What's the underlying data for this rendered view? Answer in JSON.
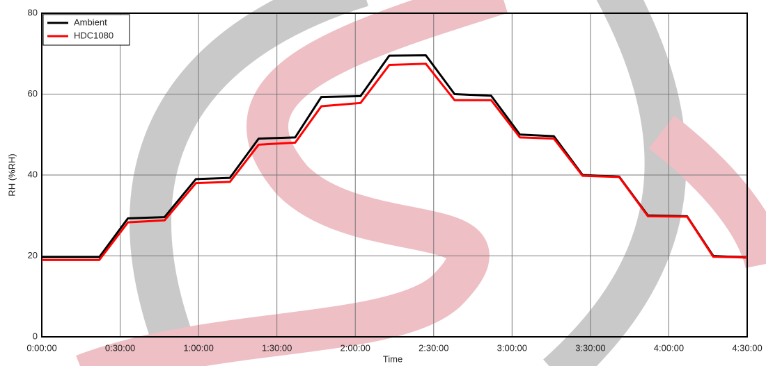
{
  "chart_data": {
    "type": "line",
    "x_label": "Time",
    "y_label": "RH (%RH)",
    "x": [
      0,
      22,
      33,
      47,
      59,
      72,
      83,
      97,
      107,
      122,
      133,
      147,
      158,
      172,
      183,
      196,
      207,
      221,
      232,
      247,
      257,
      270
    ],
    "series": [
      {
        "name": "Ambient",
        "color": "#000000",
        "values": [
          19.7,
          19.7,
          29.3,
          29.6,
          39,
          39.3,
          49,
          49.3,
          59.3,
          59.5,
          69.5,
          69.6,
          60,
          59.6,
          50,
          49.6,
          40,
          39.6,
          30,
          29.8,
          20,
          19.6
        ]
      },
      {
        "name": "HDC1080",
        "color": "#ff0000",
        "values": [
          19,
          19,
          28.3,
          28.8,
          38,
          38.3,
          47.5,
          48,
          57,
          57.8,
          67.2,
          67.5,
          58.5,
          58.5,
          49.3,
          49,
          39.8,
          39.5,
          29.8,
          29.7,
          19.8,
          19.6
        ]
      }
    ],
    "xlim": [
      0,
      270
    ],
    "xticks": [
      {
        "value": 0,
        "label": "0:00:00"
      },
      {
        "value": 30,
        "label": "0:30:00"
      },
      {
        "value": 60,
        "label": "1:00:00"
      },
      {
        "value": 90,
        "label": "1:30:00"
      },
      {
        "value": 120,
        "label": "2:00:00"
      },
      {
        "value": 150,
        "label": "2:30:00"
      },
      {
        "value": 180,
        "label": "3:00:00"
      },
      {
        "value": 210,
        "label": "3:30:00"
      },
      {
        "value": 240,
        "label": "4:00:00"
      },
      {
        "value": 270,
        "label": "4:30:00"
      }
    ],
    "ylim": [
      0,
      80
    ],
    "yticks": [
      0,
      20,
      40,
      60,
      80
    ],
    "grid": true,
    "legend": "top-left"
  }
}
